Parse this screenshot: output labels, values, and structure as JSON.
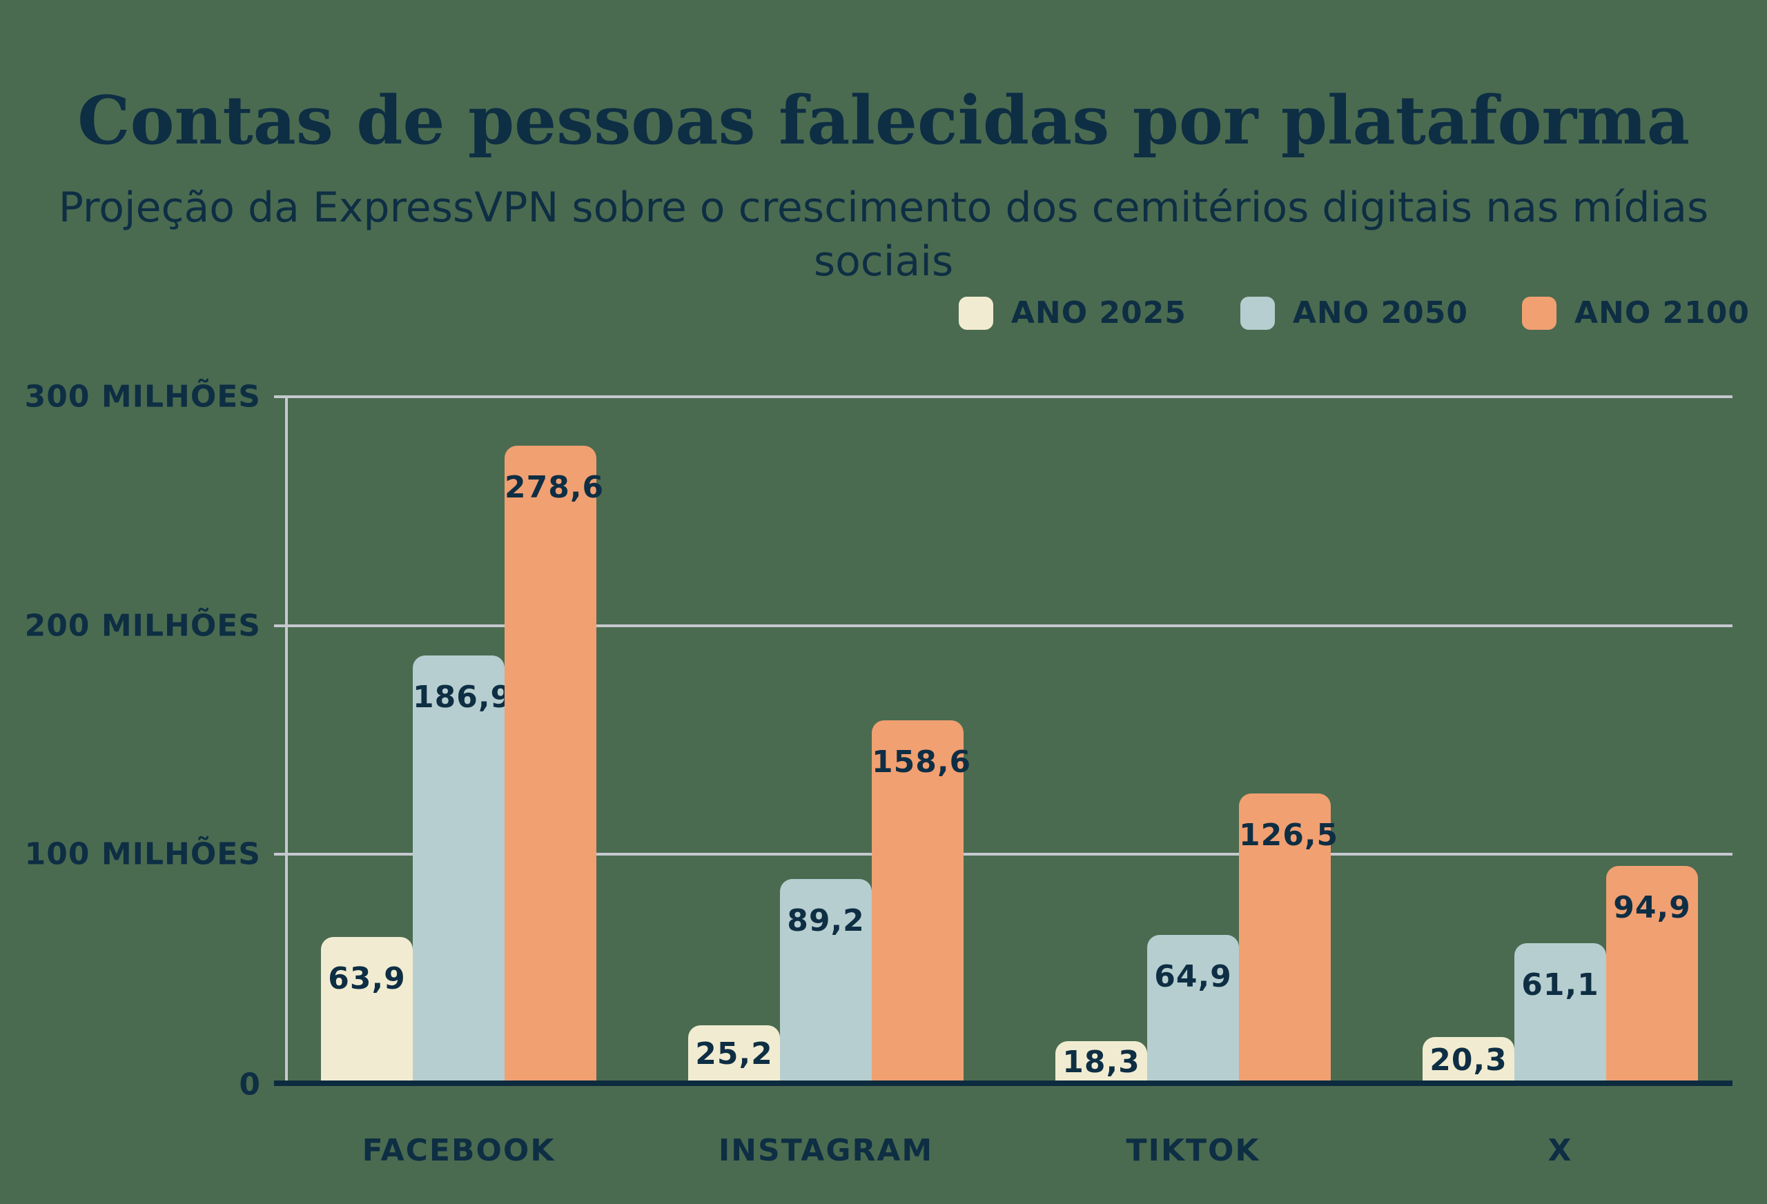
{
  "header": {
    "title": "Contas de pessoas falecidas por plataforma",
    "subtitle": "Projeção da ExpressVPN sobre o crescimento dos cemitérios digitais nas mídias sociais"
  },
  "colors": {
    "background": "#4A6B50",
    "text_navy": "#0E2E44",
    "gridline": "#C6C9CF",
    "axis_line": "#0D2B3E",
    "ano_2025": "#F1ECD1",
    "ano_2050": "#B6CECF",
    "ano_2100": "#F1A072"
  },
  "chart_data": {
    "type": "bar",
    "title": "Contas de pessoas falecidas por plataforma",
    "subtitle": "Projeção da ExpressVPN sobre o crescimento dos cemitérios digitais nas mídias sociais",
    "categories": [
      "FACEBOOK",
      "INSTAGRAM",
      "TIKTOK",
      "X"
    ],
    "series": [
      {
        "name": "ANO 2025",
        "color": "#F1ECD1",
        "values": [
          63.9,
          25.2,
          18.3,
          20.3
        ],
        "display_labels": [
          "63,9",
          "25,2",
          "18,3",
          "20,3"
        ]
      },
      {
        "name": "ANO 2050",
        "color": "#B6CECF",
        "values": [
          186.9,
          89.2,
          64.9,
          61.1
        ],
        "display_labels": [
          "186,9",
          "89,2",
          "64,9",
          "61,1"
        ]
      },
      {
        "name": "ANO 2100",
        "color": "#F1A072",
        "values": [
          278.6,
          158.6,
          126.5,
          94.9
        ],
        "display_labels": [
          "278,6",
          "158,6",
          "126,5",
          "94,9"
        ]
      }
    ],
    "ylim": [
      0,
      300
    ],
    "yticks": [
      {
        "value": 300,
        "label": "300 MILHÕES"
      },
      {
        "value": 200,
        "label": "200 MILHÕES"
      },
      {
        "value": 100,
        "label": "100 MILHÕES"
      },
      {
        "value": 0,
        "label": "0"
      }
    ],
    "grid": true,
    "legend_position": "top-right"
  }
}
